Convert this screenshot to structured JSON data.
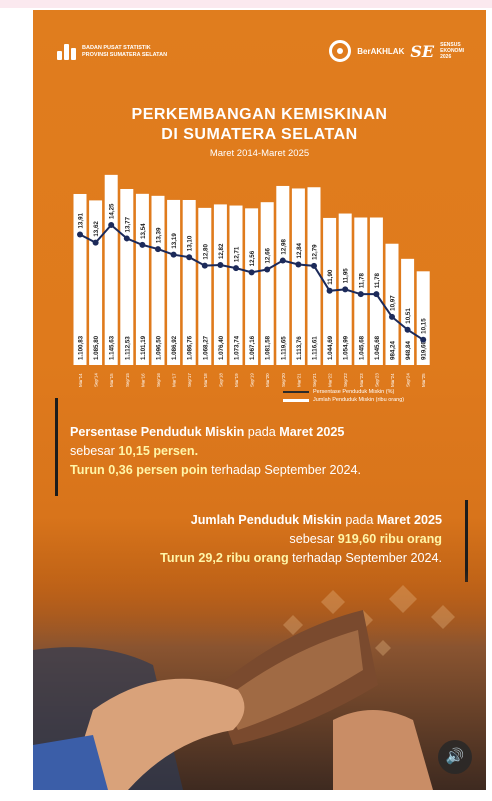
{
  "header": {
    "org_line1": "BADAN PUSAT STATISTIK",
    "org_line2": "PROVINSI SUMATERA SELATAN",
    "berakhlak": "BerAKHLAK",
    "sensus_line1": "SENSUS",
    "sensus_line2": "EKONOMI",
    "sensus_line3": "2026"
  },
  "title_line1": "PERKEMBANGAN KEMISKINAN",
  "title_line2": "DI SUMATERA SELATAN",
  "subtitle": "Maret 2014-Maret 2025",
  "chart_data": {
    "type": "bar",
    "categories": [
      "Mar'14",
      "Sep'14",
      "Mar'15",
      "Sep'15",
      "Mar'16",
      "Sep'16",
      "Mar'17",
      "Sep'17",
      "Mar'18",
      "Sep'18",
      "Mar'19",
      "Sep'19",
      "Mar'20",
      "Sep'20",
      "Mar'21",
      "Sep'21",
      "Mar'22",
      "Sep'22",
      "Mar'23",
      "Sep'23",
      "Mar'24",
      "Sep'24",
      "Mar'25"
    ],
    "series": [
      {
        "name": "Jumlah Penduduk Miskin (ribu orang)",
        "type": "bar",
        "values": [
          1100.83,
          1085.8,
          1145.63,
          1112.53,
          1101.19,
          1096.5,
          1086.92,
          1086.76,
          1068.27,
          1076.4,
          1073.74,
          1067.16,
          1081.58,
          1119.65,
          1113.76,
          1116.61,
          1044.69,
          1054.99,
          1045.68,
          1045.68,
          984.24,
          948.84,
          919.6
        ],
        "labels": [
          "1.100,83",
          "1.085,80",
          "1.145,63",
          "1.112,53",
          "1.101,19",
          "1.096,50",
          "1.086,92",
          "1.086,76",
          "1.068,27",
          "1.076,40",
          "1.073,74",
          "1.067,16",
          "1.081,58",
          "1.119,65",
          "1.113,76",
          "1.116,61",
          "1.044,69",
          "1.054,99",
          "1.045,68",
          "1.045,68",
          "984,24",
          "948,84",
          "919,60"
        ]
      },
      {
        "name": "Persentase Penduduk Miskin (%)",
        "type": "line",
        "values": [
          13.91,
          13.62,
          14.25,
          13.77,
          13.54,
          13.39,
          13.19,
          13.1,
          12.8,
          12.82,
          12.71,
          12.56,
          12.66,
          12.98,
          12.84,
          12.79,
          11.9,
          11.95,
          11.78,
          11.78,
          10.97,
          10.51,
          10.15
        ],
        "labels": [
          "13,91",
          "13,62",
          "14,25",
          "13,77",
          "13,54",
          "13,39",
          "13,19",
          "13,10",
          "12,80",
          "12,82",
          "12,71",
          "12,56",
          "12,66",
          "12,98",
          "12,84",
          "12,79",
          "11,90",
          "11,95",
          "11,78",
          "11,78",
          "10,97",
          "10,51",
          "10,15"
        ]
      }
    ],
    "legend": [
      "Persentase Penduduk Miskin (%)",
      "Jumlah Penduduk Miskin (ribu orang)"
    ],
    "legend_position": "bottom-right",
    "grid": false
  },
  "stat1": {
    "l1a": "Persentase Penduduk Miskin",
    "l1b": " pada ",
    "l1c": "Maret 2025",
    "l2a": "sebesar ",
    "l2b": "10,15 persen.",
    "l3a": "Turun 0,36 persen poin",
    "l3b": " terhadap September 2024."
  },
  "stat2": {
    "l1a": "Jumlah Penduduk Miskin",
    "l1b": " pada ",
    "l1c": "Maret 2025",
    "l2a": "sebesar ",
    "l2b": "919,60 ribu orang",
    "l3a": "Turun 29,2 ribu orang",
    "l3b": " terhadap September 2024."
  },
  "colors": {
    "accent": "#e07d1e",
    "line": "#1c2a5a",
    "bar": "#ffffff",
    "highlight": "#fff6a8"
  },
  "sound_icon": "speaker-icon"
}
